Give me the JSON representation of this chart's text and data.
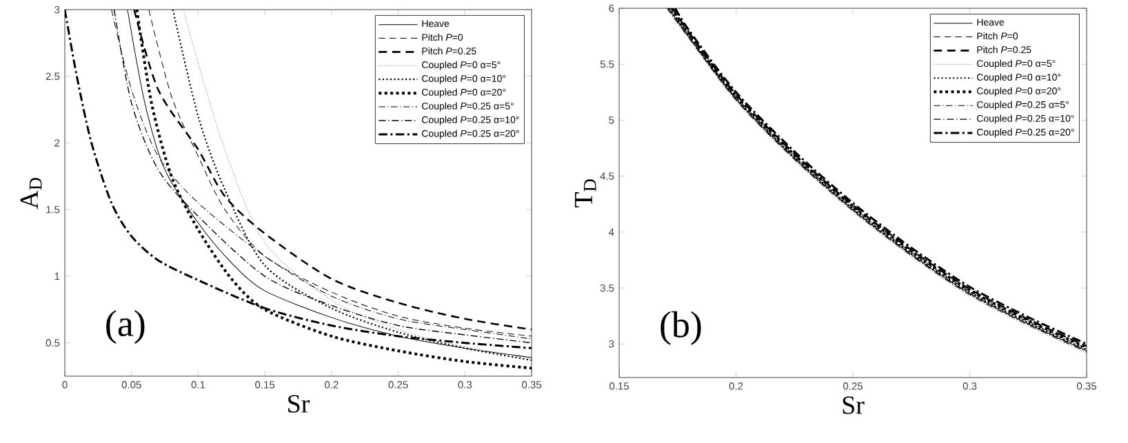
{
  "chart_data": [
    {
      "type": "line",
      "xlabel": "Sr",
      "ylabel": "A$_{D}$",
      "xlim": [
        0,
        0.35
      ],
      "ylim": [
        0.25,
        3
      ],
      "xticks": [
        0,
        0.05,
        0.1,
        0.15,
        0.2,
        0.25,
        0.3,
        0.35
      ],
      "yticks": [
        0.5,
        1,
        1.5,
        2,
        2.5,
        3
      ],
      "legend": "top right",
      "annotations": [
        "(a)"
      ],
      "series": [
        {
          "name": "Heave",
          "color": "#000000",
          "line_style": "solid",
          "x": [
            0.047,
            0.06,
            0.075,
            0.1,
            0.125,
            0.15,
            0.2,
            0.25,
            0.3,
            0.35
          ],
          "values": [
            3,
            2.3,
            1.8,
            1.4,
            1.1,
            0.89,
            0.69,
            0.55,
            0.46,
            0.39
          ]
        },
        {
          "name": "Pitch *P*=0",
          "color": "#000000",
          "line_style": "dashed",
          "x": [
            0.063,
            0.08,
            0.1,
            0.12,
            0.15,
            0.2,
            0.25,
            0.3,
            0.35
          ],
          "values": [
            3,
            2.35,
            1.9,
            1.5,
            1.15,
            0.88,
            0.7,
            0.61,
            0.55
          ]
        },
        {
          "name": "Pitch *P*=0.25",
          "color": "#000000",
          "line_style": "dashed",
          "x": [
            0.052,
            0.07,
            0.1,
            0.12,
            0.15,
            0.2,
            0.25,
            0.3,
            0.35
          ],
          "values": [
            3,
            2.4,
            1.95,
            1.6,
            1.32,
            0.98,
            0.8,
            0.68,
            0.6
          ]
        },
        {
          "name": "Coupled *P*=0  α=5°",
          "color": "#707070",
          "line_style": "dotted",
          "x": [
            0.089,
            0.1,
            0.12,
            0.15,
            0.2,
            0.25,
            0.3,
            0.35
          ],
          "values": [
            3,
            2.6,
            1.95,
            1.25,
            0.82,
            0.6,
            0.47,
            0.38
          ]
        },
        {
          "name": "Coupled *P*=0  α=10°",
          "color": "#000000",
          "line_style": "dotted",
          "x": [
            0.081,
            0.1,
            0.12,
            0.15,
            0.2,
            0.25,
            0.3,
            0.35
          ],
          "values": [
            3,
            2.2,
            1.65,
            1.08,
            0.76,
            0.58,
            0.46,
            0.37
          ]
        },
        {
          "name": "Coupled *P*=0  α=20°",
          "color": "#000000",
          "line_style": "dotted",
          "x": [
            0.054,
            0.065,
            0.08,
            0.1,
            0.125,
            0.15,
            0.2,
            0.25,
            0.3,
            0.35
          ],
          "values": [
            3,
            2.3,
            1.75,
            1.35,
            0.98,
            0.75,
            0.55,
            0.44,
            0.36,
            0.31
          ]
        },
        {
          "name": "Coupled *P*=0.25  α=5°",
          "color": "#000000",
          "line_style": "dashdot",
          "x": [
            0.035,
            0.05,
            0.07,
            0.1,
            0.15,
            0.2,
            0.25,
            0.3,
            0.35
          ],
          "values": [
            3,
            2.4,
            1.9,
            1.55,
            1.15,
            0.85,
            0.68,
            0.6,
            0.53
          ]
        },
        {
          "name": "Coupled *P*=0.25  α=10°",
          "color": "#000000",
          "line_style": "dashdot",
          "x": [
            0.037,
            0.05,
            0.07,
            0.1,
            0.15,
            0.2,
            0.25,
            0.3,
            0.35
          ],
          "values": [
            3,
            2.3,
            1.8,
            1.45,
            1.0,
            0.78,
            0.63,
            0.56,
            0.5
          ]
        },
        {
          "name": "Coupled *P*=0.25  α=20°",
          "color": "#000000",
          "line_style": "dashdot",
          "x": [
            0,
            0.009,
            0.02,
            0.035,
            0.05,
            0.07,
            0.1,
            0.15,
            0.2,
            0.25,
            0.3,
            0.35
          ],
          "values": [
            3,
            2.5,
            2,
            1.55,
            1.3,
            1.12,
            0.97,
            0.76,
            0.63,
            0.55,
            0.5,
            0.46
          ]
        }
      ]
    },
    {
      "type": "line",
      "xlabel": "Sr",
      "ylabel": "T$_{D}$",
      "xlim": [
        0.15,
        0.35
      ],
      "ylim": [
        2.7,
        6
      ],
      "xticks": [
        0.15,
        0.2,
        0.25,
        0.3,
        0.35
      ],
      "yticks": [
        3,
        3.5,
        4,
        4.5,
        5,
        5.5,
        6
      ],
      "legend": "top right",
      "annotations": [
        "(b)"
      ],
      "series": [
        {
          "name": "Heave",
          "color": "#000000",
          "line_style": "solid",
          "x": [
            0.171,
            0.18,
            0.2,
            0.225,
            0.25,
            0.275,
            0.3,
            0.325,
            0.35
          ],
          "values": [
            6,
            5.74,
            5.19,
            4.66,
            4.2,
            3.8,
            3.45,
            3.18,
            2.94
          ]
        },
        {
          "name": "Pitch *P*=0",
          "color": "#000000",
          "line_style": "dashed",
          "x": [
            0.172,
            0.18,
            0.2,
            0.225,
            0.25,
            0.275,
            0.3,
            0.325,
            0.35
          ],
          "values": [
            6,
            5.76,
            5.21,
            4.68,
            4.22,
            3.82,
            3.47,
            3.2,
            2.96
          ]
        },
        {
          "name": "Pitch *P*=0.25",
          "color": "#000000",
          "line_style": "dashed",
          "x": [
            0.173,
            0.18,
            0.2,
            0.225,
            0.25,
            0.275,
            0.3,
            0.325,
            0.35
          ],
          "values": [
            6,
            5.78,
            5.23,
            4.7,
            4.24,
            3.84,
            3.49,
            3.22,
            2.98
          ]
        },
        {
          "name": "Coupled *P*=0  α=5°",
          "color": "#707070",
          "line_style": "dotted",
          "x": [
            0.17,
            0.18,
            0.2,
            0.225,
            0.25,
            0.275,
            0.3,
            0.325,
            0.35
          ],
          "values": [
            6,
            5.72,
            5.17,
            4.64,
            4.18,
            3.78,
            3.43,
            3.16,
            2.92
          ]
        },
        {
          "name": "Coupled *P*=0  α=10°",
          "color": "#000000",
          "line_style": "dotted",
          "x": [
            0.1715,
            0.18,
            0.2,
            0.225,
            0.25,
            0.275,
            0.3,
            0.325,
            0.35
          ],
          "values": [
            6,
            5.75,
            5.2,
            4.67,
            4.21,
            3.81,
            3.46,
            3.19,
            2.95
          ]
        },
        {
          "name": "Coupled *P*=0  α=20°",
          "color": "#000000",
          "line_style": "dotted",
          "x": [
            0.1725,
            0.18,
            0.2,
            0.225,
            0.25,
            0.275,
            0.3,
            0.325,
            0.35
          ],
          "values": [
            6,
            5.77,
            5.22,
            4.69,
            4.23,
            3.83,
            3.48,
            3.21,
            2.97
          ]
        },
        {
          "name": "Coupled *P*=0.25  α=5°",
          "color": "#000000",
          "line_style": "dashdot",
          "x": [
            0.1705,
            0.18,
            0.2,
            0.225,
            0.25,
            0.275,
            0.3,
            0.325,
            0.35
          ],
          "values": [
            6,
            5.73,
            5.18,
            4.65,
            4.19,
            3.79,
            3.44,
            3.17,
            2.93
          ]
        },
        {
          "name": "Coupled *P*=0.25  α=10°",
          "color": "#000000",
          "line_style": "dashdot",
          "x": [
            0.171,
            0.18,
            0.2,
            0.225,
            0.25,
            0.275,
            0.3,
            0.325,
            0.35
          ],
          "values": [
            6,
            5.74,
            5.19,
            4.66,
            4.2,
            3.8,
            3.45,
            3.18,
            2.94
          ]
        },
        {
          "name": "Coupled *P*=0.25  α=20°",
          "color": "#000000",
          "line_style": "dashdot",
          "x": [
            0.174,
            0.18,
            0.2,
            0.225,
            0.25,
            0.275,
            0.3,
            0.325,
            0.35
          ],
          "values": [
            6,
            5.8,
            5.25,
            4.72,
            4.26,
            3.86,
            3.51,
            3.24,
            3.0
          ]
        }
      ]
    }
  ]
}
